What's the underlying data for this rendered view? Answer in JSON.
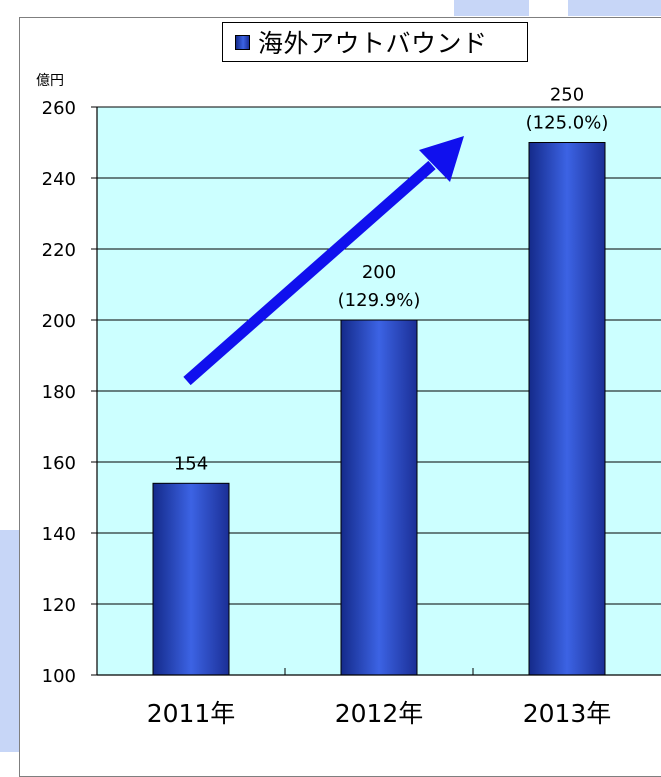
{
  "chart_data": {
    "type": "bar",
    "title": "",
    "xlabel": "",
    "ylabel": "億円",
    "ylim": [
      100,
      260
    ],
    "yticks": [
      100,
      120,
      140,
      160,
      180,
      200,
      220,
      240,
      260
    ],
    "categories": [
      "2011年",
      "2012年",
      "2013年"
    ],
    "series": [
      {
        "name": "海外アウトバウンド",
        "values": [
          154,
          200,
          250
        ],
        "value_labels": [
          "154",
          "200",
          "250"
        ],
        "growth_labels": [
          "",
          "(129.9%)",
          "(125.0%)"
        ]
      }
    ],
    "legend_position": "top-center",
    "grid": true,
    "annotation": "upward-trend-arrow",
    "colors": {
      "plot_background": "#ccffff",
      "bar_dark": "#142a8a",
      "bar_light": "#3c63e4",
      "arrow": "#1010ee",
      "deco_panel": "#c7d6f7"
    }
  }
}
